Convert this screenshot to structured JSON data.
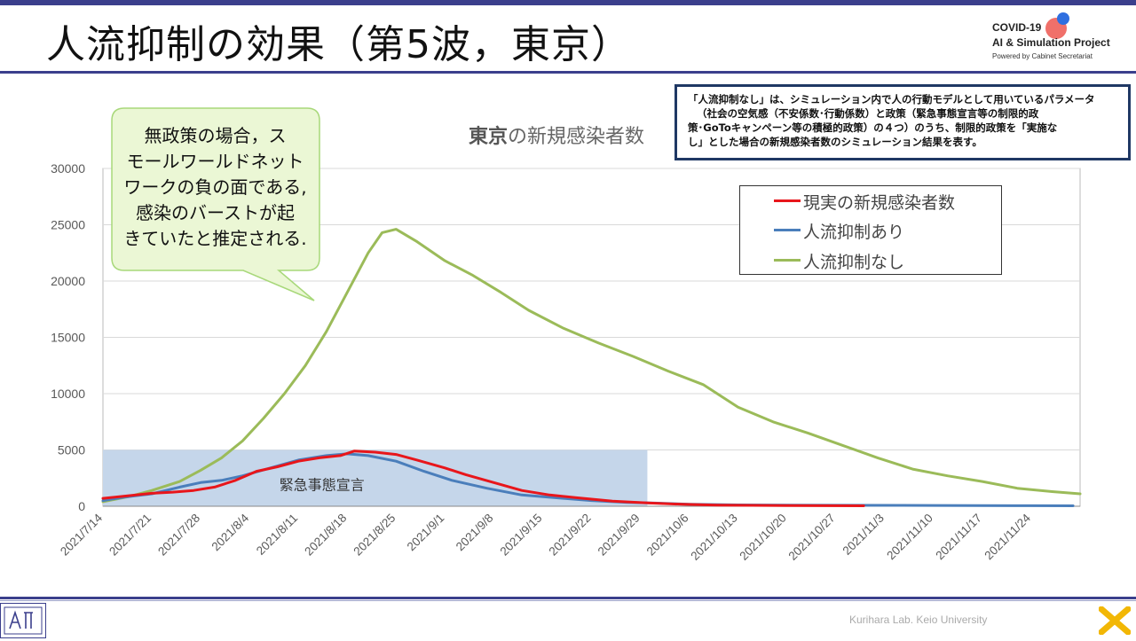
{
  "slide": {
    "title": "人流抑制の効果（第5波，東京）",
    "footer": "Kurihara Lab. Keio University"
  },
  "logo": {
    "line1": "COVID-19",
    "line2": "AI & Simulation Project",
    "line3": "Powered by Cabinet Secretariat"
  },
  "note": {
    "lines": [
      "「人流抑制なし」は、シミュレーション内で人の行動モデルとして用いているパラメータ",
      "（社会の空気感（不安係数･行動係数）と政策（緊急事態宣言等の制限的政",
      "策･GoToキャンペーン等の積極的政策）の４つ）のうち、制限的政策を「実施な",
      "し」とした場合の新規感染者数のシミュレーション結果を表す。"
    ]
  },
  "callout": {
    "lines": [
      "無政策の場合，ス",
      "モールワールドネット",
      "ワークの負の面である,",
      "感染のバーストが起",
      "きていたと推定される."
    ]
  },
  "colors": {
    "accent": "#3b3f8c",
    "real": "#e8161b",
    "with_restriction": "#4a7ebb",
    "without_restriction": "#9bbb59",
    "emergency_fill": "#c5d6ea",
    "callout_fill": "#ebf7d5",
    "callout_border": "#a8d87a"
  },
  "chart_data": {
    "type": "line",
    "title_bold": "東京",
    "title_rest": "の新規感染者数",
    "ylim": [
      0,
      30000
    ],
    "yticks": [
      0,
      5000,
      10000,
      15000,
      20000,
      25000,
      30000
    ],
    "xlim": [
      "2021-07-14",
      "2021-12-01"
    ],
    "xtick_labels": [
      "2021/7/14",
      "2021/7/21",
      "2021/7/28",
      "2021/8/4",
      "2021/8/11",
      "2021/8/18",
      "2021/8/25",
      "2021/9/1",
      "2021/9/8",
      "2021/9/15",
      "2021/9/22",
      "2021/9/29",
      "2021/10/6",
      "2021/10/13",
      "2021/10/20",
      "2021/10/27",
      "2021/11/3",
      "2021/11/10",
      "2021/11/17",
      "2021/11/24"
    ],
    "xtick_dates": [
      "2021-07-14",
      "2021-07-21",
      "2021-07-28",
      "2021-08-04",
      "2021-08-11",
      "2021-08-18",
      "2021-08-25",
      "2021-09-01",
      "2021-09-08",
      "2021-09-15",
      "2021-09-22",
      "2021-09-29",
      "2021-10-06",
      "2021-10-13",
      "2021-10-20",
      "2021-10-27",
      "2021-11-03",
      "2021-11-10",
      "2021-11-17",
      "2021-11-24"
    ],
    "emergency": {
      "label": "緊急事態宣言",
      "start": "2021-07-14",
      "end": "2021-09-30",
      "value": 5000
    },
    "grid": "horizontal",
    "legend_position": "top-right",
    "series": [
      {
        "name": "現実の新規感染者数",
        "color_key": "real",
        "points": [
          [
            "2021-07-14",
            700
          ],
          [
            "2021-07-18",
            950
          ],
          [
            "2021-07-21",
            1150
          ],
          [
            "2021-07-24",
            1250
          ],
          [
            "2021-07-27",
            1400
          ],
          [
            "2021-07-30",
            1700
          ],
          [
            "2021-08-02",
            2300
          ],
          [
            "2021-08-05",
            3100
          ],
          [
            "2021-08-08",
            3500
          ],
          [
            "2021-08-11",
            4000
          ],
          [
            "2021-08-14",
            4300
          ],
          [
            "2021-08-17",
            4500
          ],
          [
            "2021-08-19",
            4900
          ],
          [
            "2021-08-22",
            4800
          ],
          [
            "2021-08-25",
            4600
          ],
          [
            "2021-08-28",
            4100
          ],
          [
            "2021-09-01",
            3400
          ],
          [
            "2021-09-04",
            2800
          ],
          [
            "2021-09-08",
            2100
          ],
          [
            "2021-09-12",
            1400
          ],
          [
            "2021-09-16",
            1000
          ],
          [
            "2021-09-20",
            750
          ],
          [
            "2021-09-25",
            450
          ],
          [
            "2021-09-30",
            300
          ],
          [
            "2021-10-05",
            170
          ],
          [
            "2021-10-10",
            100
          ],
          [
            "2021-10-20",
            60
          ],
          [
            "2021-10-31",
            40
          ]
        ]
      },
      {
        "name": "人流抑制あり",
        "color_key": "with_restriction",
        "points": [
          [
            "2021-07-14",
            500
          ],
          [
            "2021-07-17",
            800
          ],
          [
            "2021-07-21",
            1100
          ],
          [
            "2021-07-25",
            1700
          ],
          [
            "2021-07-28",
            2100
          ],
          [
            "2021-07-31",
            2300
          ],
          [
            "2021-08-03",
            2700
          ],
          [
            "2021-08-07",
            3400
          ],
          [
            "2021-08-11",
            4100
          ],
          [
            "2021-08-15",
            4500
          ],
          [
            "2021-08-18",
            4650
          ],
          [
            "2021-08-21",
            4500
          ],
          [
            "2021-08-25",
            4000
          ],
          [
            "2021-08-29",
            3100
          ],
          [
            "2021-09-02",
            2300
          ],
          [
            "2021-09-07",
            1600
          ],
          [
            "2021-09-12",
            1000
          ],
          [
            "2021-09-17",
            750
          ],
          [
            "2021-09-22",
            500
          ],
          [
            "2021-09-27",
            350
          ],
          [
            "2021-10-01",
            280
          ],
          [
            "2021-10-06",
            180
          ],
          [
            "2021-10-13",
            120
          ],
          [
            "2021-10-27",
            90
          ],
          [
            "2021-11-10",
            70
          ],
          [
            "2021-11-24",
            50
          ],
          [
            "2021-11-30",
            40
          ]
        ]
      },
      {
        "name": "人流抑制なし",
        "color_key": "without_restriction",
        "points": [
          [
            "2021-07-14",
            400
          ],
          [
            "2021-07-18",
            900
          ],
          [
            "2021-07-21",
            1400
          ],
          [
            "2021-07-25",
            2200
          ],
          [
            "2021-07-28",
            3200
          ],
          [
            "2021-07-31",
            4300
          ],
          [
            "2021-08-03",
            5800
          ],
          [
            "2021-08-06",
            7800
          ],
          [
            "2021-08-09",
            10000
          ],
          [
            "2021-08-12",
            12500
          ],
          [
            "2021-08-15",
            15500
          ],
          [
            "2021-08-18",
            19000
          ],
          [
            "2021-08-21",
            22500
          ],
          [
            "2021-08-23",
            24300
          ],
          [
            "2021-08-25",
            24600
          ],
          [
            "2021-08-28",
            23500
          ],
          [
            "2021-09-01",
            21800
          ],
          [
            "2021-09-05",
            20500
          ],
          [
            "2021-09-09",
            19000
          ],
          [
            "2021-09-13",
            17400
          ],
          [
            "2021-09-18",
            15800
          ],
          [
            "2021-09-23",
            14500
          ],
          [
            "2021-09-28",
            13300
          ],
          [
            "2021-10-03",
            12000
          ],
          [
            "2021-10-08",
            10800
          ],
          [
            "2021-10-13",
            8800
          ],
          [
            "2021-10-18",
            7500
          ],
          [
            "2021-10-23",
            6500
          ],
          [
            "2021-10-28",
            5400
          ],
          [
            "2021-11-02",
            4300
          ],
          [
            "2021-11-07",
            3300
          ],
          [
            "2021-11-12",
            2700
          ],
          [
            "2021-11-17",
            2200
          ],
          [
            "2021-11-22",
            1600
          ],
          [
            "2021-11-27",
            1300
          ],
          [
            "2021-12-01",
            1100
          ]
        ]
      }
    ]
  }
}
